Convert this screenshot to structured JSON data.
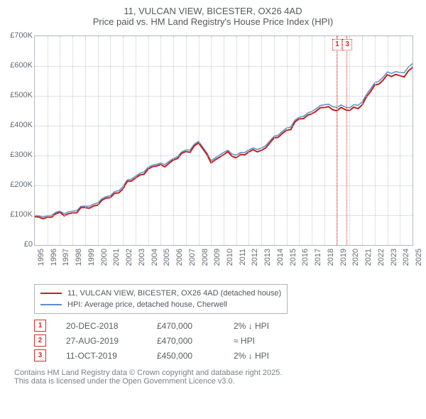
{
  "title_line1": "11, VULCAN VIEW, BICESTER, OX26 4AD",
  "title_line2": "Price paid vs. HM Land Registry's House Price Index (HPI)",
  "chart": {
    "type": "line",
    "x_years": [
      1995,
      1996,
      1997,
      1998,
      1999,
      2000,
      2001,
      2002,
      2003,
      2004,
      2005,
      2006,
      2007,
      2008,
      2009,
      2010,
      2011,
      2012,
      2013,
      2014,
      2015,
      2016,
      2017,
      2018,
      2019,
      2020,
      2021,
      2022,
      2023,
      2024,
      2025
    ],
    "ylim": [
      0,
      700
    ],
    "ytick_step": 100,
    "ytick_labels": [
      "£0",
      "£100K",
      "£200K",
      "£300K",
      "£400K",
      "£500K",
      "£600K",
      "£700K"
    ],
    "series": [
      {
        "id": "price_paid",
        "label": "11, VULCAN VIEW, BICESTER, OX26 4AD (detached house)",
        "color": "#c41e1e",
        "width": 2,
        "data": [
          90,
          95,
          100,
          108,
          120,
          140,
          160,
          195,
          225,
          255,
          265,
          280,
          310,
          340,
          280,
          305,
          300,
          310,
          320,
          350,
          385,
          415,
          445,
          460,
          460,
          450,
          475,
          530,
          570,
          560,
          595
        ]
      },
      {
        "id": "hpi",
        "label": "HPI: Average price, detached house, Cherwell",
        "color": "#5c8fc8",
        "width": 1.5,
        "data": [
          95,
          100,
          106,
          114,
          126,
          146,
          166,
          201,
          231,
          261,
          271,
          286,
          316,
          346,
          286,
          312,
          307,
          317,
          327,
          357,
          392,
          422,
          452,
          469,
          469,
          459,
          484,
          539,
          579,
          572,
          608
        ]
      }
    ],
    "sale_markers": [
      {
        "n": "1",
        "year": 2018.97
      },
      {
        "n": "3",
        "year": 2019.78
      }
    ],
    "colors": {
      "bg": "#ffffff",
      "grid": "#c1c6cb",
      "axis": "#b3b8bd",
      "text": "#52585e"
    }
  },
  "sales": [
    {
      "n": "1",
      "date": "20-DEC-2018",
      "price": "£470,000",
      "delta": "2% ↓ HPI"
    },
    {
      "n": "2",
      "date": "27-AUG-2019",
      "price": "£470,000",
      "delta": "≈ HPI"
    },
    {
      "n": "3",
      "date": "11-OCT-2019",
      "price": "£450,000",
      "delta": "2% ↓ HPI"
    }
  ],
  "footer": {
    "l1": "Contains HM Land Registry data © Crown copyright and database right 2025.",
    "l2": "This data is licensed under the Open Government Licence v3.0."
  }
}
